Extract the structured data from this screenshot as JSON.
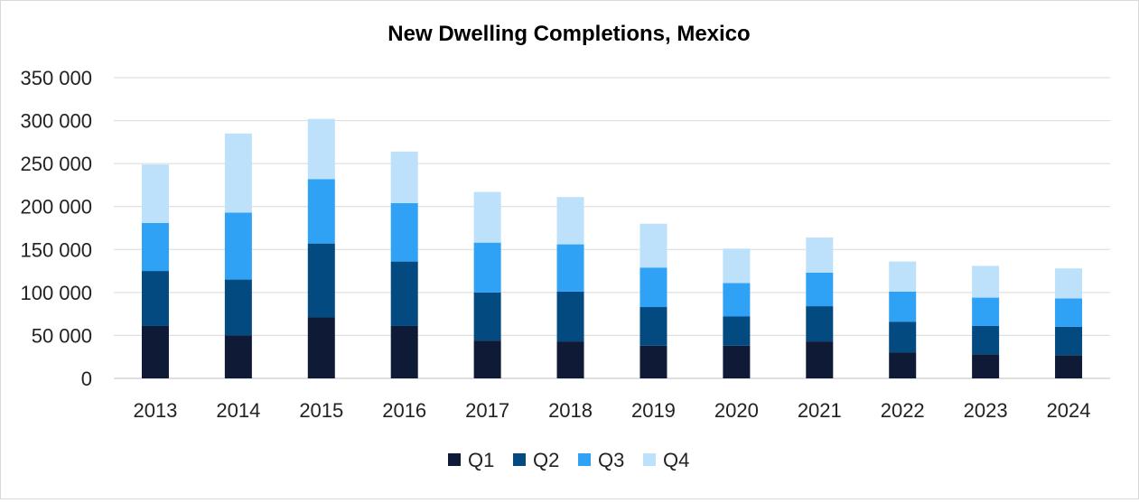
{
  "chart_data": {
    "type": "bar",
    "stacked": true,
    "title": "New Dwelling Completions, Mexico",
    "xlabel": "",
    "ylabel": "",
    "categories": [
      "2013",
      "2014",
      "2015",
      "2016",
      "2017",
      "2018",
      "2019",
      "2020",
      "2021",
      "2022",
      "2023",
      "2024"
    ],
    "ylim": [
      0,
      350000
    ],
    "y_ticks": [
      0,
      50000,
      100000,
      150000,
      200000,
      250000,
      300000,
      350000
    ],
    "y_tick_labels": [
      "0",
      "50 000",
      "100 000",
      "150 000",
      "200 000",
      "250 000",
      "300 000",
      "350 000"
    ],
    "grid": true,
    "legend_position": "bottom",
    "series": [
      {
        "name": "Q1",
        "color": "#0f1a36",
        "values": [
          61000,
          50000,
          71000,
          61000,
          44000,
          43000,
          38000,
          38000,
          43000,
          30000,
          28000,
          27000
        ]
      },
      {
        "name": "Q2",
        "color": "#034a80",
        "values": [
          64000,
          65000,
          86000,
          75000,
          56000,
          58000,
          45000,
          34000,
          41000,
          36000,
          33000,
          33000
        ]
      },
      {
        "name": "Q3",
        "color": "#30a2f5",
        "values": [
          56000,
          78000,
          75000,
          68000,
          58000,
          55000,
          46000,
          39000,
          39000,
          35000,
          33000,
          33000
        ]
      },
      {
        "name": "Q4",
        "color": "#bde1fa",
        "values": [
          68000,
          92000,
          70000,
          60000,
          59000,
          55000,
          51000,
          40000,
          41000,
          35000,
          37000,
          35000
        ]
      }
    ]
  }
}
